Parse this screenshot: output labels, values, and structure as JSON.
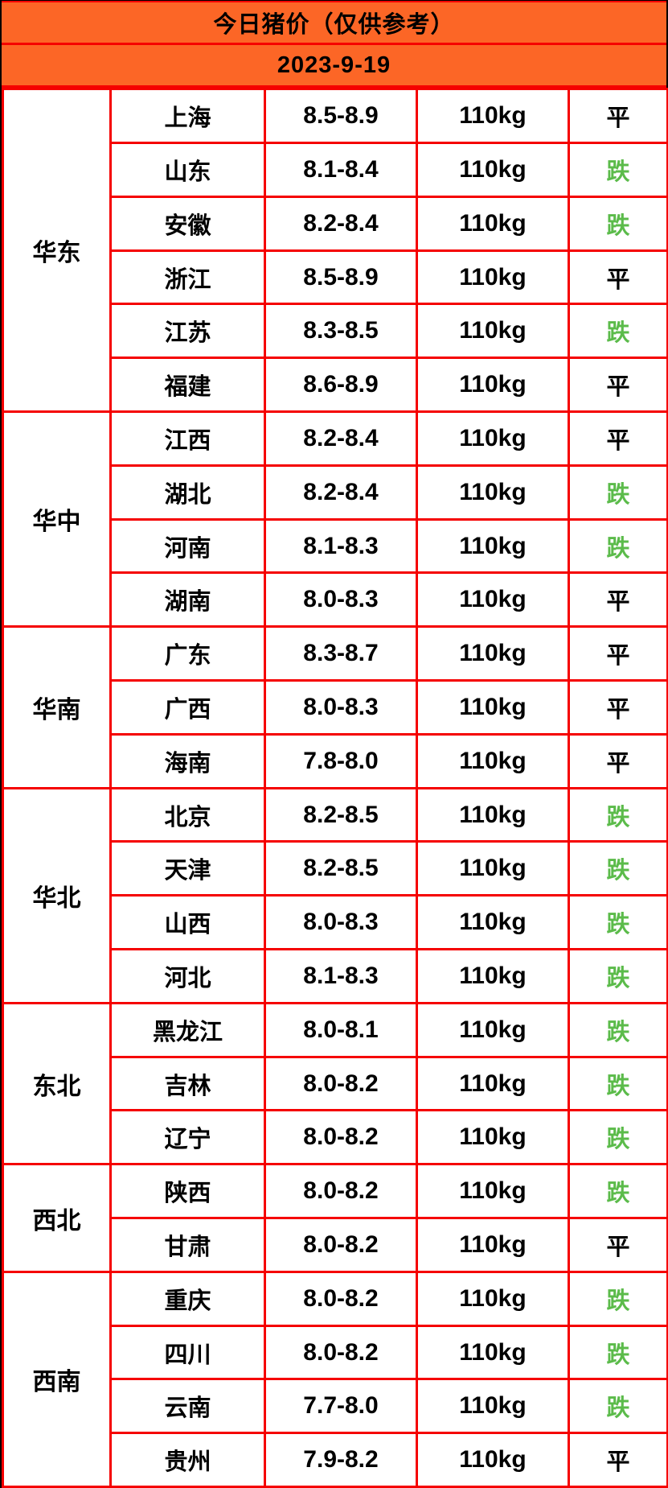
{
  "header": {
    "title": "今日猪价（仅供参考）",
    "date": "2023-9-19"
  },
  "legend": {
    "flat": "平",
    "fall": "跌"
  },
  "colors": {
    "header_bg": "#FC6626",
    "grid_red": "#F50000",
    "fall_green": "#5BBB4A",
    "flat_black": "#000000",
    "cell_bg": "#FFFFFF"
  },
  "table": {
    "regions": [
      {
        "name": "华东",
        "span": 6
      },
      {
        "name": "华中",
        "span": 4
      },
      {
        "name": "华南",
        "span": 3
      },
      {
        "name": "华北",
        "span": 4
      },
      {
        "name": "东北",
        "span": 3
      },
      {
        "name": "西北",
        "span": 2
      },
      {
        "name": "西南",
        "span": 4
      }
    ],
    "rows": [
      {
        "province": "上海",
        "price": "8.5-8.9",
        "weight": "110kg",
        "status": "平"
      },
      {
        "province": "山东",
        "price": "8.1-8.4",
        "weight": "110kg",
        "status": "跌"
      },
      {
        "province": "安徽",
        "price": "8.2-8.4",
        "weight": "110kg",
        "status": "跌"
      },
      {
        "province": "浙江",
        "price": "8.5-8.9",
        "weight": "110kg",
        "status": "平"
      },
      {
        "province": "江苏",
        "price": "8.3-8.5",
        "weight": "110kg",
        "status": "跌"
      },
      {
        "province": "福建",
        "price": "8.6-8.9",
        "weight": "110kg",
        "status": "平"
      },
      {
        "province": "江西",
        "price": "8.2-8.4",
        "weight": "110kg",
        "status": "平"
      },
      {
        "province": "湖北",
        "price": "8.2-8.4",
        "weight": "110kg",
        "status": "跌"
      },
      {
        "province": "河南",
        "price": "8.1-8.3",
        "weight": "110kg",
        "status": "跌"
      },
      {
        "province": "湖南",
        "price": "8.0-8.3",
        "weight": "110kg",
        "status": "平"
      },
      {
        "province": "广东",
        "price": "8.3-8.7",
        "weight": "110kg",
        "status": "平"
      },
      {
        "province": "广西",
        "price": "8.0-8.3",
        "weight": "110kg",
        "status": "平"
      },
      {
        "province": "海南",
        "price": "7.8-8.0",
        "weight": "110kg",
        "status": "平"
      },
      {
        "province": "北京",
        "price": "8.2-8.5",
        "weight": "110kg",
        "status": "跌"
      },
      {
        "province": "天津",
        "price": "8.2-8.5",
        "weight": "110kg",
        "status": "跌"
      },
      {
        "province": "山西",
        "price": "8.0-8.3",
        "weight": "110kg",
        "status": "跌"
      },
      {
        "province": "河北",
        "price": "8.1-8.3",
        "weight": "110kg",
        "status": "跌"
      },
      {
        "province": "黑龙江",
        "price": "8.0-8.1",
        "weight": "110kg",
        "status": "跌"
      },
      {
        "province": "吉林",
        "price": "8.0-8.2",
        "weight": "110kg",
        "status": "跌"
      },
      {
        "province": "辽宁",
        "price": "8.0-8.2",
        "weight": "110kg",
        "status": "跌"
      },
      {
        "province": "陕西",
        "price": "8.0-8.2",
        "weight": "110kg",
        "status": "跌"
      },
      {
        "province": "甘肃",
        "price": "8.0-8.2",
        "weight": "110kg",
        "status": "平"
      },
      {
        "province": "重庆",
        "price": "8.0-8.2",
        "weight": "110kg",
        "status": "跌"
      },
      {
        "province": "四川",
        "price": "8.0-8.2",
        "weight": "110kg",
        "status": "跌"
      },
      {
        "province": "云南",
        "price": "7.7-8.0",
        "weight": "110kg",
        "status": "跌"
      },
      {
        "province": "贵州",
        "price": "7.9-8.2",
        "weight": "110kg",
        "status": "平"
      }
    ]
  }
}
